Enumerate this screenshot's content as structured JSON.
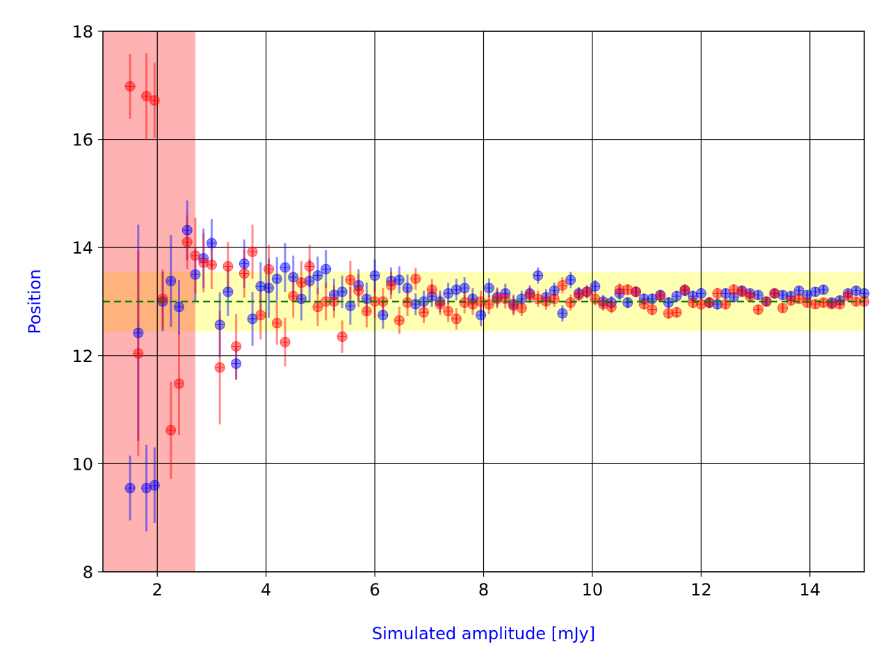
{
  "chart_data": {
    "type": "scatter",
    "title": "",
    "xlabel": "Simulated amplitude [mJy]",
    "ylabel": "Position",
    "xlim": [
      1,
      15
    ],
    "ylim": [
      8,
      18
    ],
    "xticks": [
      2,
      4,
      6,
      8,
      10,
      12,
      14
    ],
    "yticks": [
      8,
      10,
      12,
      14,
      16,
      18
    ],
    "grid": true,
    "colors": {
      "blue_series": "#0000ff",
      "red_series": "#ff0000",
      "reference_line": "#008000",
      "excluded_region": "#ff0000",
      "tolerance_band": "#ffff00",
      "axis_label": "#0000ff"
    },
    "reference_line": {
      "y": 13.0,
      "style": "dashed"
    },
    "tolerance_band": {
      "y_range": [
        12.45,
        13.55
      ]
    },
    "excluded_region": {
      "x_range": [
        1.0,
        2.7
      ]
    },
    "series": [
      {
        "name": "blue",
        "x": [
          1.5,
          1.65,
          1.8,
          1.95,
          2.1,
          2.25,
          2.4,
          2.55,
          2.7,
          2.85,
          3.0,
          3.15,
          3.3,
          3.45,
          3.6,
          3.75,
          3.9,
          4.05,
          4.2,
          4.35,
          4.5,
          4.65,
          4.8,
          4.95,
          5.1,
          5.25,
          5.4,
          5.55,
          5.7,
          5.85,
          6.0,
          6.15,
          6.3,
          6.45,
          6.6,
          6.75,
          6.9,
          7.05,
          7.2,
          7.35,
          7.5,
          7.65,
          7.8,
          7.95,
          8.1,
          8.25,
          8.4,
          8.55,
          8.7,
          8.85,
          9.0,
          9.15,
          9.3,
          9.45,
          9.6,
          9.75,
          9.9,
          10.05,
          10.2,
          10.35,
          10.5,
          10.65,
          10.8,
          10.95,
          11.1,
          11.25,
          11.4,
          11.55,
          11.7,
          11.85,
          12.0,
          12.15,
          12.3,
          12.45,
          12.6,
          12.75,
          12.9,
          13.05,
          13.2,
          13.35,
          13.5,
          13.65,
          13.8,
          13.95,
          14.1,
          14.25,
          14.4,
          14.55,
          14.7,
          14.85,
          15.0
        ],
        "y": [
          9.55,
          12.42,
          9.55,
          9.6,
          13.0,
          13.38,
          12.9,
          14.32,
          13.5,
          13.8,
          14.08,
          12.57,
          13.18,
          11.85,
          13.7,
          12.68,
          13.28,
          13.25,
          13.42,
          13.63,
          13.45,
          13.05,
          13.38,
          13.48,
          13.6,
          13.12,
          13.18,
          12.92,
          13.3,
          13.05,
          13.48,
          12.75,
          13.38,
          13.4,
          13.25,
          12.95,
          13.0,
          13.1,
          13.0,
          13.15,
          13.22,
          13.25,
          13.05,
          12.75,
          13.25,
          13.08,
          13.15,
          12.95,
          13.05,
          13.15,
          13.48,
          13.08,
          13.2,
          12.78,
          13.4,
          13.15,
          13.18,
          13.28,
          13.0,
          12.98,
          13.15,
          12.98,
          13.18,
          13.05,
          13.05,
          13.12,
          12.98,
          13.1,
          13.2,
          13.1,
          13.15,
          12.98,
          12.95,
          13.15,
          13.08,
          13.2,
          13.15,
          13.12,
          13.0,
          13.15,
          13.12,
          13.1,
          13.2,
          13.12,
          13.18,
          13.22,
          12.98,
          13.02,
          13.15,
          13.2,
          13.15
        ],
        "yerr": [
          0.6,
          2.0,
          0.8,
          0.7,
          0.55,
          0.85,
          0.5,
          0.55,
          0.5,
          0.55,
          0.45,
          0.6,
          0.45,
          0.3,
          0.45,
          0.5,
          0.45,
          0.55,
          0.4,
          0.45,
          0.4,
          0.4,
          0.4,
          0.35,
          0.35,
          0.3,
          0.3,
          0.35,
          0.3,
          0.3,
          0.3,
          0.25,
          0.25,
          0.25,
          0.25,
          0.2,
          0.2,
          0.2,
          0.2,
          0.2,
          0.2,
          0.2,
          0.2,
          0.2,
          0.18,
          0.18,
          0.18,
          0.18,
          0.15,
          0.15,
          0.15,
          0.15,
          0.15,
          0.15,
          0.15,
          0.12,
          0.12,
          0.12,
          0.12,
          0.12,
          0.12,
          0.1,
          0.1,
          0.1,
          0.1,
          0.1,
          0.1,
          0.1,
          0.1,
          0.1,
          0.1,
          0.1,
          0.1,
          0.1,
          0.1,
          0.1,
          0.08,
          0.08,
          0.08,
          0.08,
          0.08,
          0.08,
          0.08,
          0.08,
          0.08,
          0.08,
          0.08,
          0.08,
          0.08,
          0.08,
          0.08
        ]
      },
      {
        "name": "red",
        "x": [
          1.5,
          1.65,
          1.8,
          1.95,
          2.1,
          2.25,
          2.4,
          2.55,
          2.7,
          2.85,
          3.0,
          3.15,
          3.3,
          3.45,
          3.6,
          3.75,
          3.9,
          4.05,
          4.2,
          4.35,
          4.5,
          4.65,
          4.8,
          4.95,
          5.1,
          5.25,
          5.4,
          5.55,
          5.7,
          5.85,
          6.0,
          6.15,
          6.3,
          6.45,
          6.6,
          6.75,
          6.9,
          7.05,
          7.2,
          7.35,
          7.5,
          7.65,
          7.8,
          7.95,
          8.1,
          8.25,
          8.4,
          8.55,
          8.7,
          8.85,
          9.0,
          9.15,
          9.3,
          9.45,
          9.6,
          9.75,
          9.9,
          10.05,
          10.2,
          10.35,
          10.5,
          10.65,
          10.8,
          10.95,
          11.1,
          11.25,
          11.4,
          11.55,
          11.7,
          11.85,
          12.0,
          12.15,
          12.3,
          12.45,
          12.6,
          12.75,
          12.9,
          13.05,
          13.2,
          13.35,
          13.5,
          13.65,
          13.8,
          13.95,
          14.1,
          14.25,
          14.4,
          14.55,
          14.7,
          14.85,
          15.0
        ],
        "y": [
          16.98,
          12.04,
          16.8,
          16.72,
          13.05,
          10.62,
          11.48,
          14.1,
          13.85,
          13.72,
          13.68,
          11.78,
          13.65,
          12.17,
          13.52,
          13.92,
          12.75,
          13.6,
          12.6,
          12.25,
          13.1,
          13.35,
          13.65,
          12.9,
          13.0,
          13.0,
          12.35,
          13.4,
          13.2,
          12.82,
          13.0,
          13.0,
          13.3,
          12.65,
          12.98,
          13.42,
          12.8,
          13.22,
          12.95,
          12.82,
          12.68,
          12.98,
          12.95,
          13.0,
          12.95,
          13.05,
          13.05,
          12.92,
          12.88,
          13.12,
          13.05,
          13.0,
          13.05,
          13.3,
          12.98,
          13.12,
          13.18,
          13.05,
          12.95,
          12.9,
          13.22,
          13.22,
          13.18,
          12.95,
          12.85,
          13.1,
          12.78,
          12.8,
          13.22,
          12.98,
          12.95,
          12.98,
          13.15,
          12.95,
          13.22,
          13.18,
          13.1,
          12.85,
          13.0,
          13.15,
          12.88,
          13.02,
          13.05,
          12.98,
          12.95,
          12.98,
          12.95,
          12.95,
          13.1,
          13.0,
          13.0
        ],
        "yerr": [
          0.6,
          1.9,
          0.8,
          0.7,
          0.55,
          0.9,
          0.95,
          0.5,
          0.7,
          0.55,
          0.45,
          1.05,
          0.45,
          0.6,
          0.45,
          0.5,
          0.45,
          0.45,
          0.4,
          0.45,
          0.4,
          0.4,
          0.4,
          0.35,
          0.35,
          0.3,
          0.3,
          0.35,
          0.3,
          0.3,
          0.3,
          0.25,
          0.25,
          0.25,
          0.25,
          0.2,
          0.2,
          0.2,
          0.2,
          0.2,
          0.2,
          0.2,
          0.2,
          0.2,
          0.18,
          0.18,
          0.18,
          0.18,
          0.15,
          0.15,
          0.15,
          0.15,
          0.15,
          0.15,
          0.15,
          0.12,
          0.12,
          0.12,
          0.12,
          0.12,
          0.12,
          0.1,
          0.1,
          0.1,
          0.1,
          0.1,
          0.1,
          0.1,
          0.1,
          0.1,
          0.1,
          0.1,
          0.1,
          0.1,
          0.1,
          0.1,
          0.08,
          0.08,
          0.08,
          0.08,
          0.08,
          0.08,
          0.08,
          0.08,
          0.08,
          0.08,
          0.08,
          0.08,
          0.08,
          0.08,
          0.08
        ]
      }
    ]
  }
}
